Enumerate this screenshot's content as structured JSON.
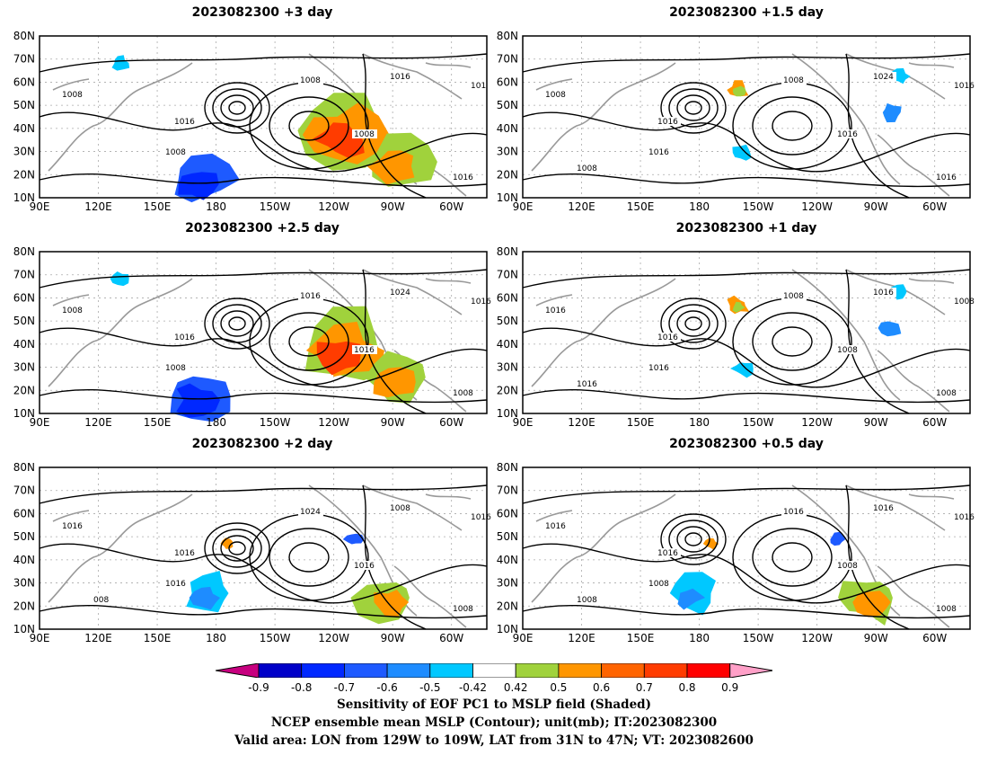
{
  "panels": [
    {
      "title": "2023082300  +3 day",
      "contour_labels": [
        "1008",
        "1016",
        "1008",
        "1008",
        "1016",
        "1008",
        "1016",
        "101"
      ],
      "shading": "strong"
    },
    {
      "title": "2023082300  +1.5 day",
      "contour_labels": [
        "1008",
        "1016",
        "1016",
        "1008",
        "1024",
        "1016",
        "1016",
        "1016",
        "1008"
      ],
      "shading": "weak"
    },
    {
      "title": "2023082300  +2.5 day",
      "contour_labels": [
        "1008",
        "1016",
        "1008",
        "1016",
        "1024",
        "1016",
        "1008",
        "1016"
      ],
      "shading": "strong"
    },
    {
      "title": "2023082300  +1 day",
      "contour_labels": [
        "1016",
        "1016",
        "1016",
        "1008",
        "1016",
        "1008",
        "1008",
        "1008",
        "1016"
      ],
      "shading": "weak"
    },
    {
      "title": "2023082300  +2 day",
      "contour_labels": [
        "1016",
        "1016",
        "1016",
        "1024",
        "1008",
        "1016",
        "1008",
        "1016",
        "008"
      ],
      "shading": "medium"
    },
    {
      "title": "2023082300  +0.5 day",
      "contour_labels": [
        "1016",
        "1016",
        "1008",
        "1016",
        "1016",
        "1008",
        "1008",
        "1016",
        "1008"
      ],
      "shading": "medium"
    }
  ],
  "axes": {
    "lat_labels": [
      "80N",
      "70N",
      "60N",
      "50N",
      "40N",
      "30N",
      "20N",
      "10N"
    ],
    "lon_labels": [
      "90E",
      "120E",
      "150E",
      "180",
      "150W",
      "120W",
      "90W",
      "60W"
    ]
  },
  "colorbar": {
    "labels": [
      "-0.9",
      "-0.8",
      "-0.7",
      "-0.6",
      "-0.5",
      "-0.42",
      "0.42",
      "0.5",
      "0.6",
      "0.7",
      "0.8",
      "0.9"
    ],
    "colors": [
      "#c7007f",
      "#0000c8",
      "#0028ff",
      "#1e5aff",
      "#1e8cff",
      "#00c8ff",
      "#ffffff",
      "#a0d23c",
      "#ff9600",
      "#ff6400",
      "#ff3c00",
      "#ff0000",
      "#ffa0c8"
    ]
  },
  "caption": {
    "line1": "Sensitivity of EOF PC1 to MSLP field (Shaded)",
    "line2": "NCEP ensemble mean MSLP (Contour); unit(mb); IT:2023082300",
    "line3": "Valid area: LON from 129W to 109W, LAT from 31N to 47N; VT: 2023082600"
  }
}
